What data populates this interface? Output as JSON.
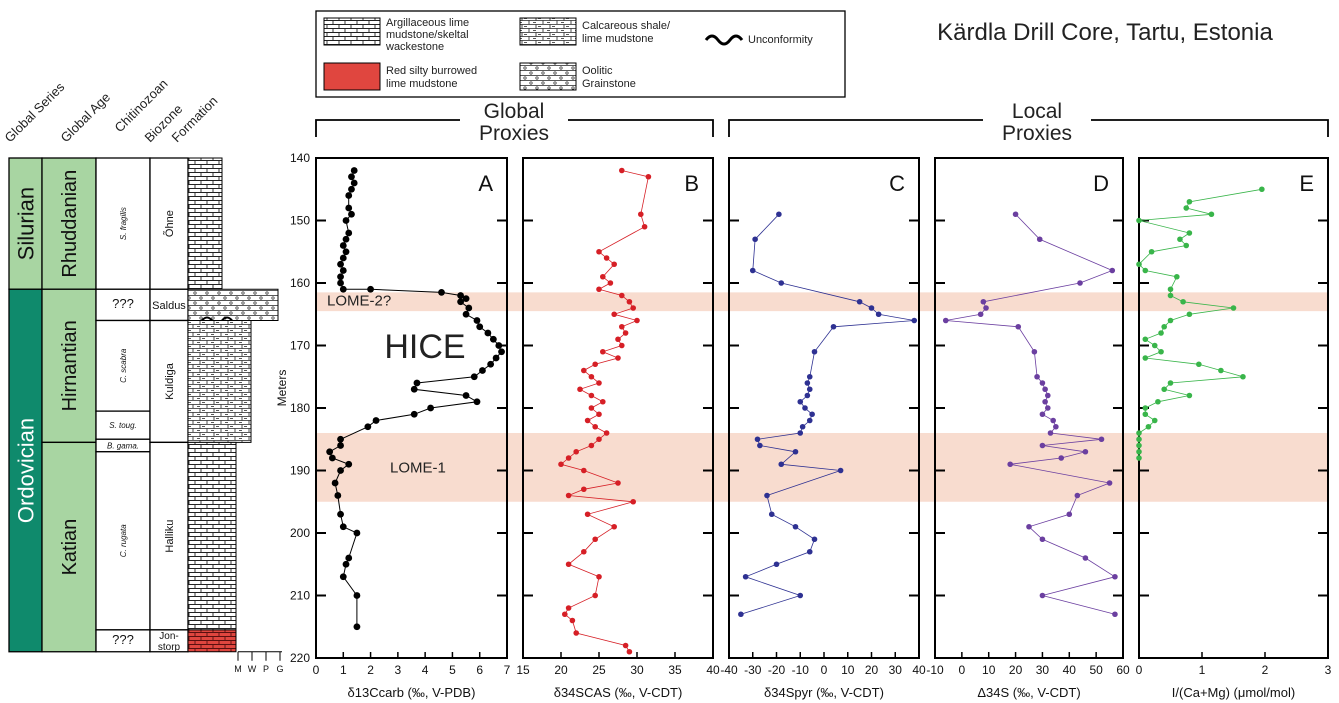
{
  "title": "Kärdla Drill Core, Tartu, Estonia",
  "legend": {
    "items": [
      {
        "label_lines": [
          "Argillaceous lime",
          "mudstone/skeltal",
          "wackestone"
        ],
        "pattern": "brick"
      },
      {
        "label_lines": [
          "Calcareous shale/",
          "lime mudstone"
        ],
        "pattern": "shale"
      },
      {
        "label_lines": [
          "Unconformity"
        ],
        "pattern": "wave"
      },
      {
        "label_lines": [
          "Red silty burrowed",
          "lime mudstone"
        ],
        "pattern": "red"
      },
      {
        "label_lines": [
          "Oolitic",
          "Grainstone"
        ],
        "pattern": "oolite"
      }
    ]
  },
  "strat": {
    "headers": [
      "Global Series",
      "Global Age",
      "Chitinozoan",
      "Biozone",
      "Formation"
    ],
    "series": [
      {
        "label": "Silurian",
        "from": 140,
        "to": 161,
        "color": "#a8d5a2"
      },
      {
        "label": "Ordovician",
        "from": 161,
        "to": 219,
        "color": "#0f8a6c"
      }
    ],
    "ages": [
      {
        "label": "Rhuddanian",
        "from": 140,
        "to": 161
      },
      {
        "label": "Hirnantian",
        "from": 161,
        "to": 185.5
      },
      {
        "label": "Katian",
        "from": 185.5,
        "to": 219
      }
    ],
    "biozones": [
      {
        "label": "S. fragilis",
        "from": 140,
        "to": 161,
        "italic": true
      },
      {
        "label": "???",
        "from": 161,
        "to": 166,
        "italic": false
      },
      {
        "label": "C. scabra",
        "from": 166,
        "to": 180.5,
        "italic": true
      },
      {
        "label": "S. toug.",
        "from": 180.5,
        "to": 185,
        "italic": true
      },
      {
        "label": "B. gama.",
        "from": 185,
        "to": 187,
        "italic": true
      },
      {
        "label": "C. rugata",
        "from": 187,
        "to": 215.5,
        "italic": true
      },
      {
        "label": "???",
        "from": 215.5,
        "to": 219,
        "italic": false
      }
    ],
    "formations": [
      {
        "label": "Õhne",
        "from": 140,
        "to": 161,
        "vertical": true
      },
      {
        "label": "Saldus",
        "from": 161,
        "to": 166,
        "vertical": false
      },
      {
        "label": "Kuldiga",
        "from": 166,
        "to": 185.5,
        "vertical": true
      },
      {
        "label": "Halliku",
        "from": 185.5,
        "to": 215.5,
        "vertical": true
      },
      {
        "label": "Jon-storp",
        "from": 215.5,
        "to": 219,
        "vertical": false
      }
    ],
    "scale_labels": [
      "M",
      "W",
      "P",
      "G"
    ]
  },
  "groups": [
    {
      "label_lines": [
        "Global",
        "Proxies"
      ]
    },
    {
      "label_lines": [
        "Local",
        "Proxies"
      ]
    }
  ],
  "bands": [
    {
      "label": "LOME-2?",
      "from": 161.5,
      "to": 164.5
    },
    {
      "label": "LOME-1",
      "from": 184,
      "to": 195
    }
  ],
  "annotations": [
    {
      "text": "HICE"
    }
  ],
  "colors": {
    "band": "#f8dccf",
    "A": "#000000",
    "B": "#d61f26",
    "C": "#2e3192",
    "D": "#6b3fa0",
    "E": "#39b54a",
    "red_unit": "#e0463f"
  },
  "chart_data": [
    {
      "panel": "A",
      "type": "line",
      "xlabel": "δ13Ccarb (‰, V-PDB)",
      "ylabel": "Meters",
      "xlim": [
        0,
        7
      ],
      "ylim": [
        140,
        220
      ],
      "xticks": [
        0,
        1,
        2,
        3,
        4,
        5,
        6,
        7
      ],
      "yticks": [
        140,
        150,
        160,
        170,
        180,
        190,
        200,
        210,
        220
      ],
      "x": [
        1.4,
        1.3,
        1.4,
        1.3,
        1.2,
        1.2,
        1.3,
        1.1,
        1.2,
        1.1,
        1.0,
        1.1,
        1.0,
        0.9,
        1.0,
        0.9,
        0.9,
        1.0,
        2.0,
        4.6,
        5.3,
        5.5,
        5.3,
        5.6,
        5.5,
        5.9,
        6.0,
        6.3,
        6.5,
        6.7,
        6.8,
        6.6,
        6.4,
        6.1,
        5.8,
        3.7,
        3.6,
        5.5,
        5.9,
        4.2,
        3.6,
        2.2,
        1.9,
        0.9,
        0.9,
        0.5,
        0.6,
        1.2,
        0.9,
        0.7,
        0.8,
        0.9,
        1.0,
        1.5,
        1.2,
        1.1,
        1.0,
        1.5,
        1.5
      ],
      "y": [
        142,
        143,
        144,
        145,
        146,
        148,
        149,
        150,
        152,
        153,
        154,
        155,
        156,
        157,
        158,
        159,
        160,
        161,
        161,
        161.5,
        162,
        162.5,
        163,
        164,
        165,
        166,
        167,
        168,
        169,
        170,
        171,
        172,
        173,
        174,
        175,
        176,
        177,
        178,
        179,
        180,
        181,
        182,
        183,
        185,
        186,
        187,
        188,
        189,
        190,
        192,
        194,
        197,
        199,
        200,
        204,
        205,
        207,
        210,
        215
      ],
      "label": "A"
    },
    {
      "panel": "B",
      "type": "line",
      "xlabel": "δ34SCAS (‰, V-CDT)",
      "xlim": [
        15,
        40
      ],
      "ylim": [
        140,
        220
      ],
      "xticks": [
        15,
        20,
        25,
        30,
        35,
        40
      ],
      "x": [
        28,
        31.5,
        30.5,
        31,
        25,
        26,
        27,
        25.5,
        26.5,
        25,
        28,
        29,
        29.5,
        27,
        30,
        28,
        28.5,
        27.5,
        28,
        25.5,
        27.5,
        24.5,
        23,
        24,
        25,
        22.5,
        24,
        25.5,
        24,
        25,
        23.5,
        24.5,
        26,
        25,
        24,
        22,
        21,
        20,
        23,
        27.5,
        23,
        21,
        29.5,
        23.5,
        27,
        24.5,
        23,
        21,
        25,
        24.5,
        21,
        20.5,
        21.5,
        22,
        28.5,
        29
      ],
      "y": [
        142,
        143,
        149,
        151,
        155,
        156,
        157,
        159,
        160,
        161,
        162,
        163,
        164,
        165,
        166,
        167,
        168,
        169,
        170,
        171,
        172,
        173,
        174,
        175,
        176,
        177,
        178,
        179,
        180,
        181,
        182,
        183,
        184,
        185,
        186,
        187,
        188,
        189,
        190,
        192,
        193,
        194,
        195,
        197,
        199,
        201,
        203,
        205,
        207,
        210,
        212,
        213,
        214,
        216,
        218,
        219
      ],
      "label": "B"
    },
    {
      "panel": "C",
      "type": "line",
      "xlabel": "δ34Spyr (‰, V-CDT)",
      "xlim": [
        -40,
        40
      ],
      "ylim": [
        140,
        220
      ],
      "xticks": [
        -40,
        -30,
        -20,
        -10,
        0,
        10,
        20,
        30,
        40
      ],
      "x": [
        -19,
        -29,
        -30,
        -18,
        15,
        20,
        23,
        38,
        4,
        -4,
        -6,
        -7,
        -6,
        -7,
        -10,
        -8,
        -5,
        -6,
        -9,
        -10,
        -28,
        -27,
        -12,
        -18,
        7,
        -24,
        -22,
        -12,
        -4,
        -6,
        -20,
        -33,
        -10,
        -35
      ],
      "y": [
        149,
        153,
        158,
        160,
        163,
        164,
        165,
        166,
        167,
        171,
        175,
        176,
        177,
        178,
        179,
        180,
        181,
        182,
        183,
        184,
        185,
        186,
        187,
        189,
        190,
        194,
        197,
        199,
        201,
        203,
        205,
        207,
        210,
        213
      ],
      "label": "C"
    },
    {
      "panel": "D",
      "type": "line",
      "xlabel": "Δ34S (‰, V-CDT)",
      "xlim": [
        -10,
        60
      ],
      "ylim": [
        140,
        220
      ],
      "xticks": [
        -10,
        0,
        10,
        20,
        30,
        40,
        50,
        60
      ],
      "x": [
        20,
        29,
        56,
        44,
        8,
        9,
        7,
        -6,
        21,
        27,
        28,
        30,
        31,
        32,
        31,
        32,
        30,
        34,
        35,
        33,
        52,
        30,
        46,
        37,
        18,
        55,
        43,
        40,
        25,
        30,
        46,
        57,
        30,
        57
      ],
      "y": [
        149,
        153,
        158,
        160,
        163,
        164,
        165,
        166,
        167,
        171,
        175,
        176,
        177,
        178,
        179,
        180,
        181,
        182,
        183,
        184,
        185,
        186,
        187,
        188,
        189,
        192,
        194,
        197,
        199,
        201,
        204,
        207,
        210,
        213
      ],
      "label": "D"
    },
    {
      "panel": "E",
      "type": "line",
      "xlabel": "I/(Ca+Mg) (μmol/mol)",
      "xlim": [
        0,
        3
      ],
      "ylim": [
        140,
        220
      ],
      "xticks": [
        0,
        1,
        2,
        3
      ],
      "x": [
        1.95,
        0.8,
        0.75,
        1.15,
        0.0,
        0.8,
        0.65,
        0.75,
        0.2,
        0.0,
        0.1,
        0.6,
        0.5,
        0.5,
        0.7,
        1.5,
        0.8,
        0.5,
        0.4,
        0.35,
        0.1,
        0.25,
        0.35,
        0.1,
        0.95,
        1.3,
        1.65,
        0.5,
        0.4,
        0.8,
        0.3,
        0.1,
        0.1,
        0.25,
        0.15,
        0.0,
        0.0,
        0.0,
        0.0,
        0.0
      ],
      "y": [
        145,
        147,
        148,
        149,
        150,
        152,
        153,
        154,
        155,
        157,
        158,
        159,
        161,
        162,
        163,
        164,
        165,
        166,
        167,
        168,
        169,
        170,
        171,
        172,
        173,
        174,
        175,
        176,
        177,
        178,
        179,
        180,
        181,
        182,
        183,
        184,
        185,
        186,
        187,
        188
      ],
      "label": "E"
    }
  ]
}
